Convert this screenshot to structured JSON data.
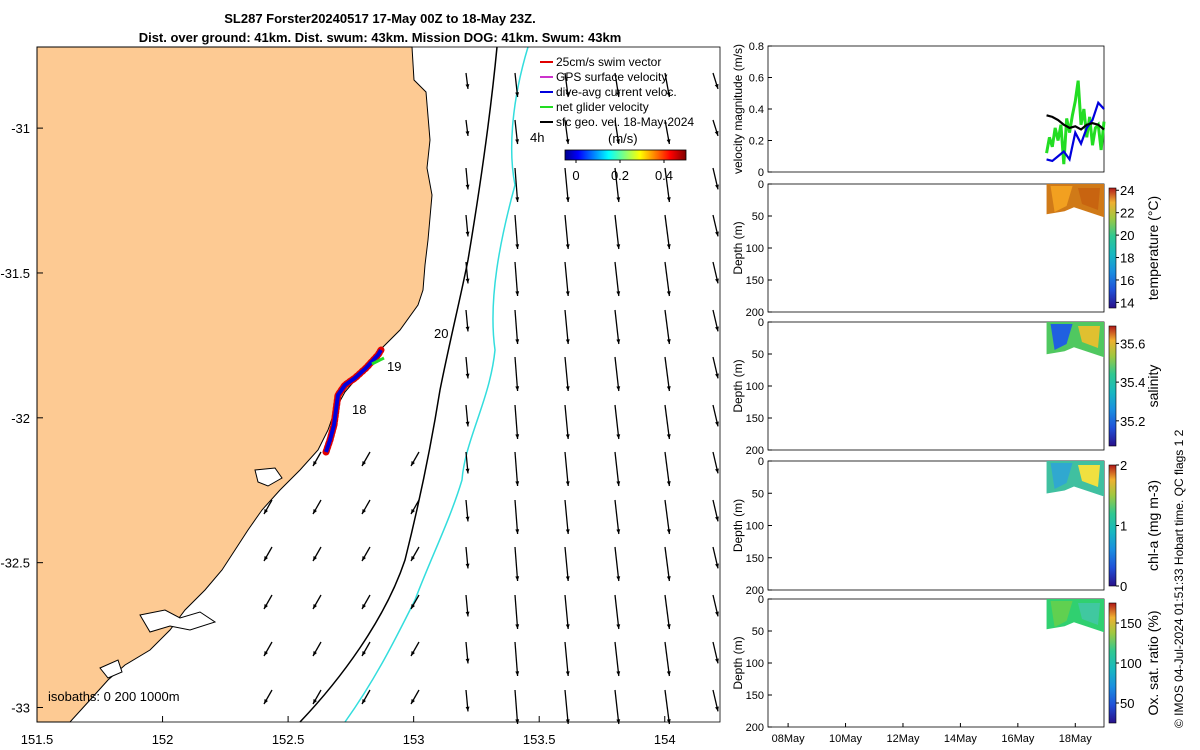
{
  "title": {
    "line1": "SL287 Forster20240517 17-May 00Z to 18-May 23Z.",
    "line2": "Dist. over ground: 41km. Dist. swum: 43km. Mission DOG: 41km. Swum: 43km"
  },
  "credit": "© IMOS 04-Jul-2024 01:51:33 Hobart time. QC flags 1  2",
  "chart_data": [
    {
      "type": "map",
      "x_ticks": [
        "151.5",
        "152",
        "152.5",
        "153",
        "153.5",
        "154"
      ],
      "x_tick_values": [
        151.5,
        152,
        152.5,
        153,
        153.5,
        154
      ],
      "y_ticks": [
        "-31",
        "-31.5",
        "-32",
        "-32.5",
        "-33"
      ],
      "y_tick_values": [
        -31,
        -31.5,
        -32,
        -32.5,
        -33
      ],
      "xlim": [
        151.5,
        154.22
      ],
      "ylim": [
        -33.05,
        -30.72
      ],
      "legend": [
        {
          "label": "25cm/s swim vector",
          "color": "#e00000"
        },
        {
          "label": "GPS surface velocity",
          "color": "#cc33cc"
        },
        {
          "label": "dive-avg current veloc.",
          "color": "#0000dd"
        },
        {
          "label": "net glider velocity",
          "color": "#22dd22"
        },
        {
          "label": "sfc geo. vel. 18-May-2024",
          "color": "#000000"
        }
      ],
      "legend_placement": "top-right",
      "colorbar": {
        "label": "(m/s)",
        "ticks": [
          "0",
          "0.2",
          "0.4"
        ],
        "tick_values": [
          0,
          0.2,
          0.4
        ],
        "range": [
          -0.05,
          0.5
        ]
      },
      "annotations": [
        "4h",
        "20",
        "19",
        "18"
      ],
      "isobath_label": "isobaths: 0   200  1000m",
      "land_color": "#fdca93"
    },
    {
      "type": "line",
      "ylabel": "velocity magnitude (m/s)",
      "y_ticks": [
        "0",
        "0.2",
        "0.4",
        "0.6",
        "0.8"
      ],
      "y_tick_values": [
        0,
        0.2,
        0.4,
        0.6,
        0.8
      ],
      "ylim": [
        0,
        0.8
      ],
      "xlim": [
        7.3,
        19.0
      ],
      "series": [
        {
          "color": "#22dd22",
          "x": [
            17.0,
            17.1,
            17.2,
            17.3,
            17.4,
            17.5,
            17.6,
            17.7,
            17.8,
            17.9,
            18.0,
            18.1,
            18.2,
            18.3,
            18.4,
            18.5,
            18.6,
            18.7,
            18.8,
            18.9,
            19.0
          ],
          "y": [
            0.12,
            0.22,
            0.16,
            0.28,
            0.2,
            0.3,
            0.05,
            0.34,
            0.25,
            0.36,
            0.45,
            0.58,
            0.3,
            0.4,
            0.22,
            0.35,
            0.17,
            0.28,
            0.3,
            0.14,
            0.32
          ]
        },
        {
          "color": "#0000dd",
          "x": [
            17.0,
            17.2,
            17.4,
            17.6,
            17.8,
            18.0,
            18.2,
            18.4,
            18.6,
            18.8,
            19.0
          ],
          "y": [
            0.08,
            0.07,
            0.1,
            0.13,
            0.08,
            0.25,
            0.18,
            0.28,
            0.33,
            0.44,
            0.4
          ]
        },
        {
          "color": "#000000",
          "x": [
            17.0,
            17.2,
            17.4,
            17.6,
            17.8,
            18.0,
            18.2,
            18.4,
            18.6,
            18.8,
            19.0
          ],
          "y": [
            0.36,
            0.35,
            0.33,
            0.3,
            0.28,
            0.29,
            0.27,
            0.3,
            0.31,
            0.3,
            0.27
          ]
        }
      ]
    },
    {
      "type": "heatmap",
      "ylabel": "Depth (m)",
      "colorbar_label": "temperature (°C)",
      "y_ticks": [
        "0",
        "50",
        "100",
        "150",
        "200"
      ],
      "y_tick_values": [
        0,
        50,
        100,
        150,
        200
      ],
      "ylim": [
        0,
        200
      ],
      "colorbar_ticks": [
        "14",
        "16",
        "18",
        "20",
        "22",
        "24"
      ],
      "colorbar_tick_values": [
        14,
        16,
        18,
        20,
        22,
        24
      ],
      "colorbar_range": [
        13.5,
        24.2
      ],
      "data_extent": {
        "x": [
          17.0,
          19.0
        ],
        "depth": [
          0,
          52
        ]
      },
      "typical_value": 22.5
    },
    {
      "type": "heatmap",
      "ylabel": "Depth (m)",
      "colorbar_label": "salinity",
      "y_ticks": [
        "0",
        "50",
        "100",
        "150",
        "200"
      ],
      "y_tick_values": [
        0,
        50,
        100,
        150,
        200
      ],
      "ylim": [
        0,
        200
      ],
      "colorbar_ticks": [
        "35.2",
        "35.4",
        "35.6"
      ],
      "colorbar_tick_values": [
        35.2,
        35.4,
        35.6
      ],
      "colorbar_range": [
        35.07,
        35.69
      ],
      "data_extent": {
        "x": [
          17.0,
          19.0
        ],
        "depth": [
          0,
          55
        ]
      },
      "typical_value": 35.45
    },
    {
      "type": "heatmap",
      "ylabel": "Depth (m)",
      "colorbar_label": "chl-a (mg m-3)",
      "y_ticks": [
        "0",
        "50",
        "100",
        "150",
        "200"
      ],
      "y_tick_values": [
        0,
        50,
        100,
        150,
        200
      ],
      "ylim": [
        0,
        200
      ],
      "colorbar_ticks": [
        "0",
        "1",
        "2"
      ],
      "colorbar_tick_values": [
        0,
        1,
        2
      ],
      "colorbar_range": [
        0,
        2
      ],
      "data_extent": {
        "x": [
          17.0,
          19.0
        ],
        "depth": [
          0,
          55
        ]
      },
      "typical_value": 0.8
    },
    {
      "type": "heatmap",
      "ylabel": "Depth (m)",
      "colorbar_label": "Ox. sat. ratio (%)",
      "y_ticks": [
        "0",
        "50",
        "100",
        "150",
        "200"
      ],
      "y_tick_values": [
        0,
        50,
        100,
        150,
        200
      ],
      "ylim": [
        0,
        200
      ],
      "x_ticks": [
        "08May",
        "10May",
        "12May",
        "14May",
        "16May",
        "18May"
      ],
      "x_tick_values": [
        8,
        10,
        12,
        14,
        16,
        18
      ],
      "colorbar_ticks": [
        "50",
        "100",
        "150"
      ],
      "colorbar_tick_values": [
        50,
        100,
        150
      ],
      "colorbar_range": [
        25,
        175
      ],
      "data_extent": {
        "x": [
          17.0,
          19.0
        ],
        "depth": [
          0,
          52
        ]
      },
      "typical_value": 100
    }
  ]
}
